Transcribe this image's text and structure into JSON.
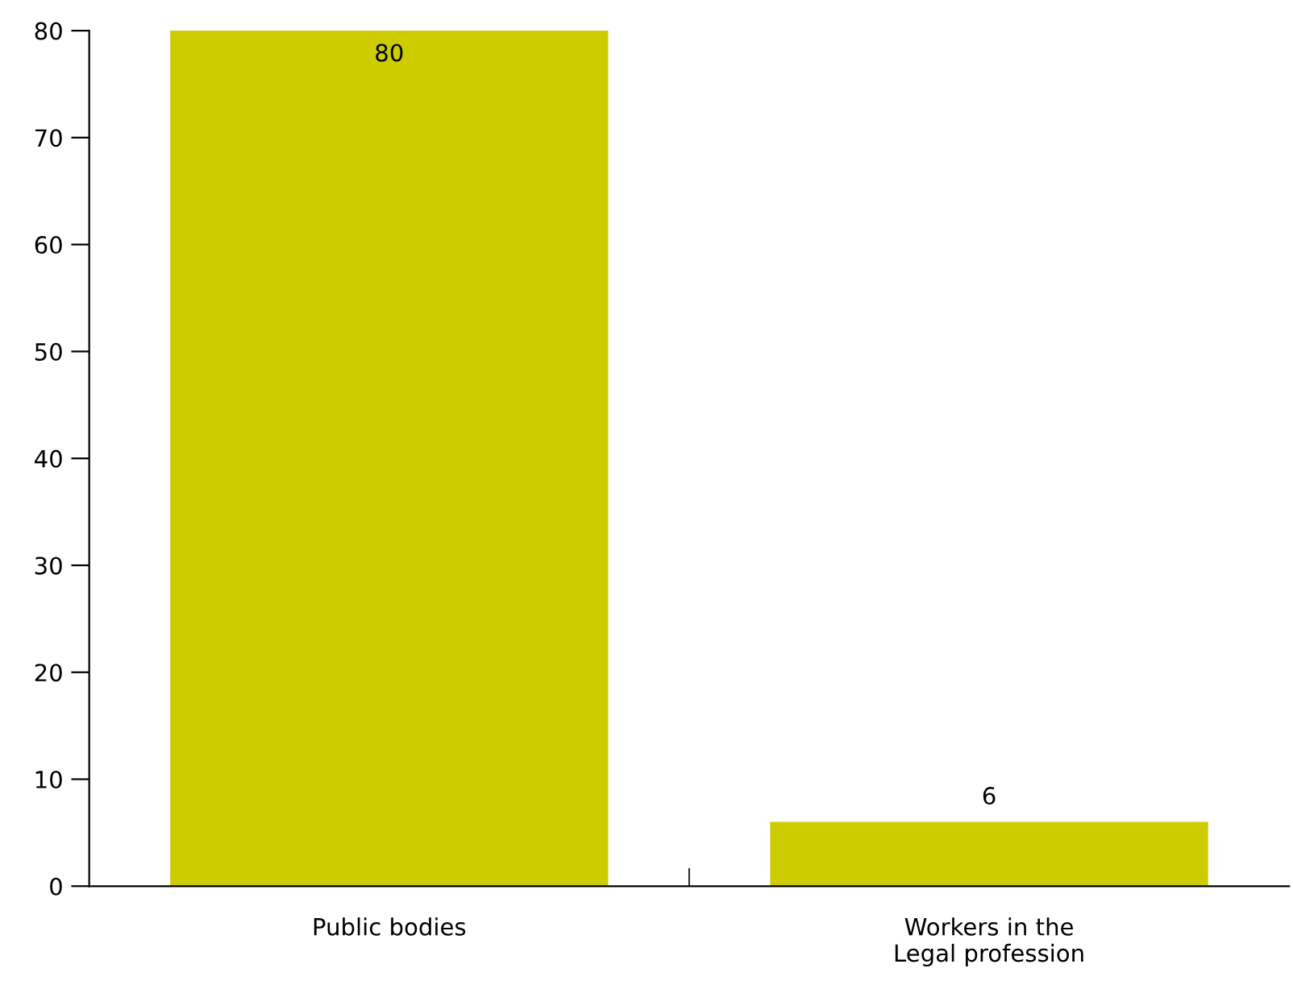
{
  "chart_data": {
    "type": "bar",
    "categories": [
      "Public bodies",
      "Workers in the\nLegal profession"
    ],
    "values": [
      80,
      6
    ],
    "color": "#cccc00",
    "ylim": [
      0,
      80
    ],
    "yticks": [
      0,
      10,
      20,
      30,
      40,
      50,
      60,
      70,
      80
    ],
    "grid": false,
    "data_labels": true
  }
}
